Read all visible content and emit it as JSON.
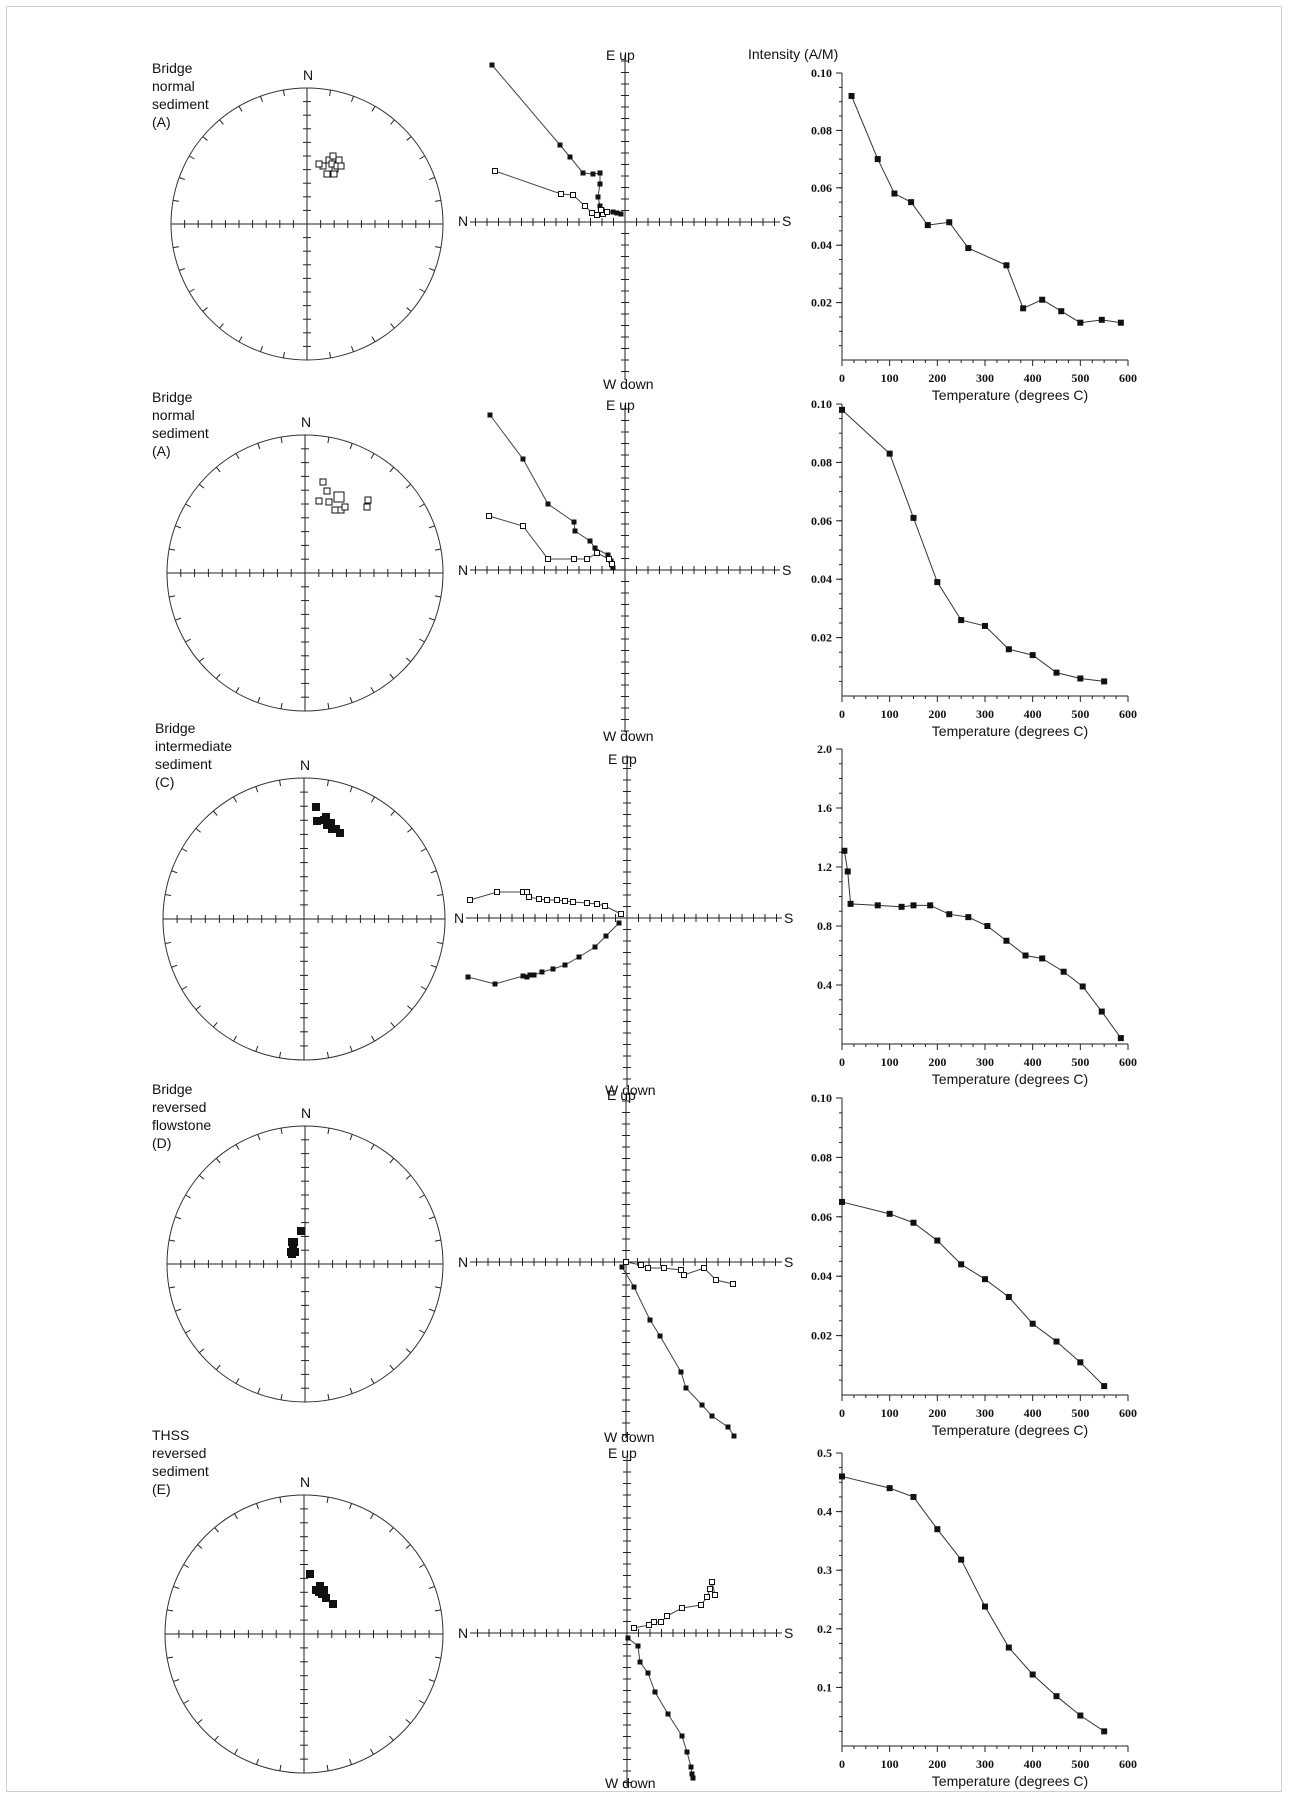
{
  "intensity_axis_title": "Intensity (A/M)",
  "temperature_axis_title": "Temperature (degrees C)",
  "panels": [
    {
      "site": "Bridge",
      "polarity": "normal",
      "material": "sediment",
      "code": "(A)",
      "stereo_n": "N",
      "zij": {
        "top": "E up",
        "bottom": "W down",
        "left": "N",
        "right": "S"
      }
    },
    {
      "site": "Bridge",
      "polarity": "normal",
      "material": "sediment",
      "code": "(A)",
      "stereo_n": "N",
      "zij": {
        "top": "E up",
        "bottom": "W down",
        "left": "N",
        "right": "S"
      }
    },
    {
      "site": "Bridge",
      "polarity": "intermediate",
      "material": "sediment",
      "code": "(C)",
      "stereo_n": "N",
      "zij": {
        "top": "E up",
        "bottom": "W down",
        "left": "N",
        "right": "S"
      }
    },
    {
      "site": "Bridge",
      "polarity": "reversed",
      "material": "flowstone",
      "code": "(D)",
      "stereo_n": "N",
      "zij": {
        "top": "E up",
        "bottom": "W down",
        "left": "N",
        "right": "S"
      }
    },
    {
      "site": "THSS",
      "polarity": "reversed",
      "material": "sediment",
      "code": "(E)",
      "stereo_n": "N",
      "zij": {
        "top": "E up",
        "bottom": "W down",
        "left": "N",
        "right": "S"
      }
    }
  ],
  "chart_data": [
    {
      "type": "line",
      "xlabel": "Temperature (degrees C)",
      "ylabel": "Intensity (A/M)",
      "xlim": [
        0,
        600
      ],
      "ylim": [
        0,
        0.1
      ],
      "xticks": [
        "0",
        "100",
        "200",
        "300",
        "400",
        "500",
        "600"
      ],
      "yticks": [
        "0.02",
        "0.04",
        "0.06",
        "0.08",
        "0.10"
      ],
      "x": [
        20,
        75,
        110,
        145,
        180,
        225,
        265,
        345,
        380,
        420,
        460,
        500,
        545,
        585
      ],
      "y": [
        0.092,
        0.07,
        0.058,
        0.055,
        0.047,
        0.048,
        0.039,
        0.033,
        0.018,
        0.021,
        0.017,
        0.013,
        0.014,
        0.013
      ]
    },
    {
      "type": "line",
      "xlabel": "Temperature (degrees C)",
      "xlim": [
        0,
        600
      ],
      "ylim": [
        0,
        0.1
      ],
      "xticks": [
        "0",
        "100",
        "200",
        "300",
        "400",
        "500",
        "600"
      ],
      "yticks": [
        "0.02",
        "0.04",
        "0.06",
        "0.08",
        "0.10"
      ],
      "x": [
        0,
        100,
        150,
        200,
        250,
        300,
        350,
        400,
        450,
        500,
        550
      ],
      "y": [
        0.098,
        0.083,
        0.061,
        0.039,
        0.026,
        0.024,
        0.016,
        0.014,
        0.008,
        0.006,
        0.005
      ]
    },
    {
      "type": "line",
      "xlabel": "Temperature (degrees C)",
      "xlim": [
        0,
        600
      ],
      "ylim": [
        0,
        2.0
      ],
      "xticks": [
        "0",
        "100",
        "200",
        "300",
        "400",
        "500",
        "600"
      ],
      "yticks": [
        "0.4",
        "0.8",
        "1.2",
        "1.6",
        "2.0"
      ],
      "x": [
        5,
        12,
        18,
        75,
        125,
        150,
        185,
        225,
        265,
        305,
        345,
        385,
        420,
        465,
        505,
        545,
        585
      ],
      "y": [
        1.31,
        1.17,
        0.95,
        0.94,
        0.93,
        0.94,
        0.94,
        0.88,
        0.86,
        0.8,
        0.7,
        0.6,
        0.58,
        0.49,
        0.39,
        0.22,
        0.04
      ]
    },
    {
      "type": "line",
      "xlabel": "Temperature (degrees C)",
      "xlim": [
        0,
        600
      ],
      "ylim": [
        0,
        0.1
      ],
      "xticks": [
        "0",
        "100",
        "200",
        "300",
        "400",
        "500",
        "600"
      ],
      "yticks": [
        "0.02",
        "0.04",
        "0.06",
        "0.08",
        "0.10"
      ],
      "x": [
        0,
        100,
        150,
        200,
        250,
        300,
        350,
        400,
        450,
        500,
        550
      ],
      "y": [
        0.065,
        0.061,
        0.058,
        0.052,
        0.044,
        0.039,
        0.033,
        0.024,
        0.018,
        0.011,
        0.003
      ]
    },
    {
      "type": "line",
      "xlabel": "Temperature (degrees C)",
      "xlim": [
        0,
        600
      ],
      "ylim": [
        0,
        0.5
      ],
      "xticks": [
        "0",
        "100",
        "200",
        "300",
        "400",
        "500",
        "600"
      ],
      "yticks": [
        "0.1",
        "0.2",
        "0.3",
        "0.4",
        "0.5"
      ],
      "x": [
        0,
        100,
        150,
        200,
        250,
        300,
        350,
        400,
        450,
        500,
        550
      ],
      "y": [
        0.46,
        0.44,
        0.425,
        0.37,
        0.318,
        0.238,
        0.168,
        0.122,
        0.085,
        0.052,
        0.025
      ]
    }
  ]
}
